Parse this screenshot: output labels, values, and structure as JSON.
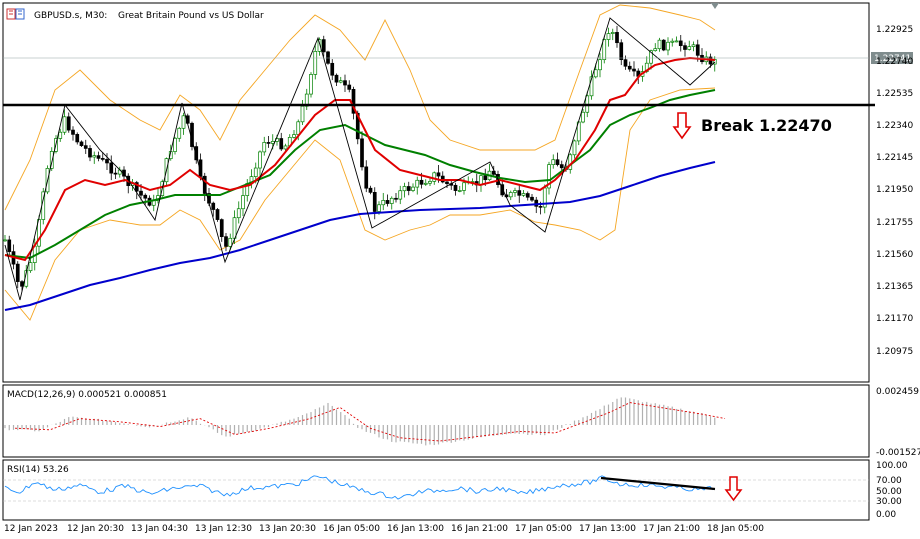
{
  "header": {
    "symbol": "GBPUSD.s, M30:",
    "description": "Great Britain Pound vs US Dollar"
  },
  "main_chart": {
    "price_labels": [
      "1.22925",
      "1.22740",
      "1.22535",
      "1.22340",
      "1.22145",
      "1.21950",
      "1.21755",
      "1.21560",
      "1.21365",
      "1.21170",
      "1.20975"
    ],
    "current_price": "1.22741",
    "annotation": "Break 1.22470",
    "colors": {
      "bull_candle": "#008000",
      "bear_candle": "#000000",
      "bollinger": "#f5a623",
      "ma_fast": "#e00000",
      "ma_mid": "#008000",
      "ma_slow": "#0000cc",
      "support_line": "#000000",
      "arrow": "#e00000",
      "price_tag": "#7f8c8d"
    },
    "icon": "down-arrow-icon"
  },
  "macd": {
    "label": "MACD(12,26,9) 0.000521 0.000851",
    "scale_top": "0.002459",
    "scale_bottom": "-0.001527"
  },
  "rsi": {
    "label": "RSI(14) 53.26",
    "scale": [
      "100.00",
      "70.00",
      "50.00",
      "30.00",
      "0.00"
    ],
    "icon": "down-arrow-icon"
  },
  "time_axis": [
    "12 Jan 2023",
    "12 Jan 20:30",
    "13 Jan 04:30",
    "13 Jan 12:30",
    "13 Jan 20:30",
    "16 Jan 05:00",
    "16 Jan 13:00",
    "16 Jan 21:00",
    "17 Jan 05:00",
    "17 Jan 13:00",
    "17 Jan 21:00",
    "18 Jan 05:00"
  ]
}
